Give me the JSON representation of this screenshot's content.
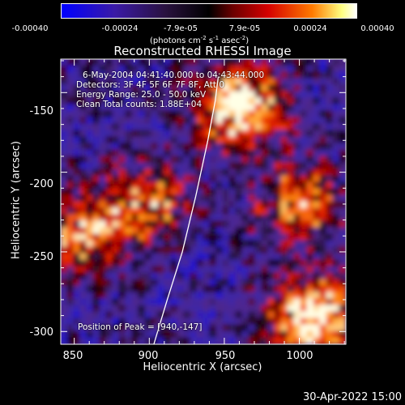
{
  "colorbar": {
    "ticks": [
      "-0.00040",
      "-0.00024",
      "-7.9e-05",
      "7.9e-05",
      "0.00024",
      "0.00040"
    ],
    "units_text": "(photons cm",
    "units_exp1": "-2",
    "units_mid": " s",
    "units_exp2": "-1",
    "units_mid2": " asec",
    "units_exp3": "-2",
    "units_close": ")"
  },
  "info": {
    "time_range": "6-May-2004 04:41:40.000 to 04:43:44.000",
    "detectors": "Detectors: 3F 4F 5F 6F 7F 8F, Att 0",
    "energy": "Energy Range: 25.0 - 50.0 keV",
    "clean": "Clean    Total counts: 1.88E+04",
    "peak": "Position of Peak = [940,-147]"
  },
  "timestamp": "30-Apr-2022 15:00",
  "chart_data": {
    "type": "heatmap",
    "title": "Reconstructed RHESSI Image",
    "xlabel": "Heliocentric X (arcsec)",
    "ylabel": "Heliocentric Y (arcsec)",
    "xlim": [
      841,
      1031
    ],
    "ylim": [
      -308,
      -129
    ],
    "xticks": [
      850,
      900,
      950,
      1000
    ],
    "yticks": [
      -150,
      -200,
      -250,
      -300
    ],
    "colorscale": [
      "#0000ff",
      "#5c2f9a",
      "#000000",
      "#c40000",
      "#ff8000",
      "#ffffff"
    ],
    "color_range": [
      -0.0004,
      0.0004
    ],
    "peak": [
      940,
      -147
    ],
    "limb_curve": [
      [
        903,
        -308
      ],
      [
        912,
        -280
      ],
      [
        922,
        -250
      ],
      [
        931,
        -215
      ],
      [
        939,
        -180
      ],
      [
        944,
        -155
      ],
      [
        946,
        -140
      ]
    ],
    "bright_regions": [
      {
        "label": "upper-right",
        "x": 960,
        "y": -160,
        "level": 0.0004
      },
      {
        "label": "right-mid",
        "x": 1000,
        "y": -220,
        "level": 0.00024
      },
      {
        "label": "lower-right",
        "x": 1010,
        "y": -290,
        "level": 0.0004
      },
      {
        "label": "center-left",
        "x": 897,
        "y": -220,
        "level": 0.00024
      },
      {
        "label": "left-mid",
        "x": 855,
        "y": -240,
        "level": 0.00024
      }
    ]
  }
}
